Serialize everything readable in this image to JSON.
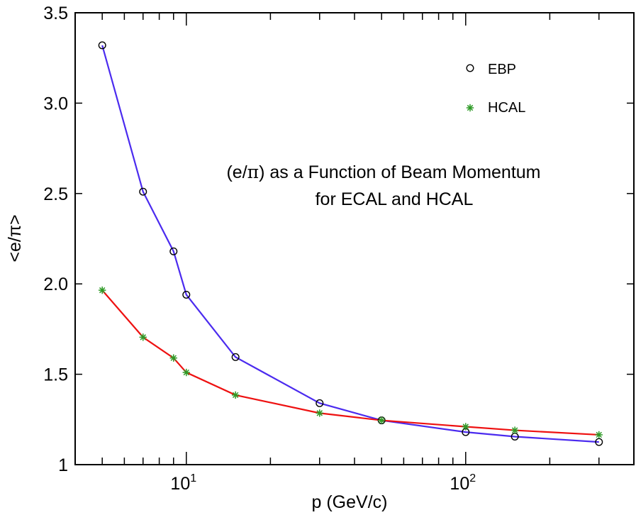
{
  "chart_data": {
    "type": "line",
    "x_scale": "log",
    "xlabel": "p (GeV/c)",
    "ylabel": "<e/π>",
    "xlim": [
      4,
      400
    ],
    "ylim": [
      1,
      3.5
    ],
    "y_ticks": [
      "1",
      "1.5",
      "2.0",
      "2.5",
      "3.0",
      "3.5"
    ],
    "x_tick_labels": [
      {
        "base": "10",
        "exp": "1"
      },
      {
        "base": "10",
        "exp": "2"
      }
    ],
    "annotation": {
      "line1_prefix": "(e/",
      "line1_pi": "π",
      "line1_suffix": ") as a Function of Beam Momentum",
      "line2": "for ECAL and HCAL"
    },
    "legend_position": "top-right",
    "series": [
      {
        "name": "EBP",
        "marker": "circle",
        "line_color": "#4b2bef",
        "marker_color": "#000000",
        "x": [
          5,
          7,
          9,
          10,
          15,
          30,
          50,
          100,
          150,
          300
        ],
        "y": [
          3.32,
          2.51,
          2.18,
          1.94,
          1.595,
          1.34,
          1.245,
          1.18,
          1.155,
          1.125
        ]
      },
      {
        "name": "HCAL",
        "marker": "asterisk",
        "line_color": "#ee1111",
        "marker_color": "#2e9a26",
        "x": [
          5,
          7,
          9,
          10,
          15,
          30,
          50,
          100,
          150,
          300
        ],
        "y": [
          1.965,
          1.705,
          1.59,
          1.51,
          1.385,
          1.285,
          1.245,
          1.21,
          1.19,
          1.165
        ]
      }
    ]
  }
}
